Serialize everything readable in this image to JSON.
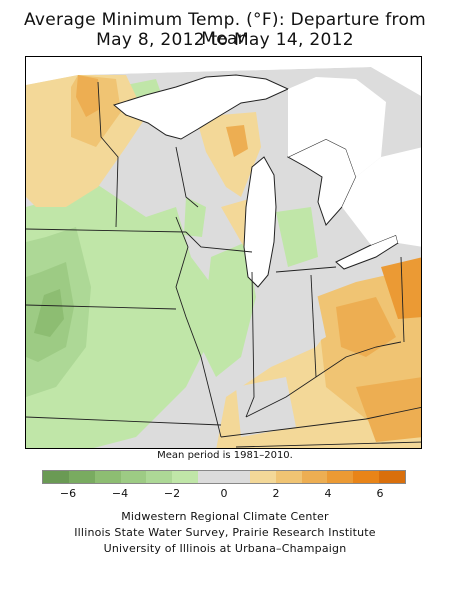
{
  "title_line1": "Average Minimum Temp. (°F): Departure from Mean",
  "title_line2": "May 8, 2012 to May 14, 2012",
  "mean_period_note": "Mean period is 1981–2010.",
  "legend": {
    "ticks": [
      "−6",
      "−4",
      "−2",
      "0",
      "2",
      "4",
      "6"
    ],
    "tick_values": [
      -6,
      -4,
      -2,
      0,
      2,
      4,
      6
    ],
    "range": [
      -7,
      7
    ],
    "bins": [
      {
        "from": -7,
        "to": -6,
        "color": "#6a9a54"
      },
      {
        "from": -6,
        "to": -5,
        "color": "#79ab60"
      },
      {
        "from": -5,
        "to": -4,
        "color": "#8dbd72"
      },
      {
        "from": -4,
        "to": -3,
        "color": "#9dcb84"
      },
      {
        "from": -3,
        "to": -2,
        "color": "#add896"
      },
      {
        "from": -2,
        "to": -1,
        "color": "#c0e6a8"
      },
      {
        "from": -1,
        "to": 1,
        "color": "#dcdcdc"
      },
      {
        "from": 1,
        "to": 2,
        "color": "#f3d898"
      },
      {
        "from": 2,
        "to": 3,
        "color": "#f0c473"
      },
      {
        "from": 3,
        "to": 4,
        "color": "#edae52"
      },
      {
        "from": 4,
        "to": 5,
        "color": "#eb9a34"
      },
      {
        "from": 5,
        "to": 6,
        "color": "#e88418"
      },
      {
        "from": 6,
        "to": 7,
        "color": "#d96f0c"
      }
    ]
  },
  "credits": {
    "line1": "Midwestern Regional Climate Center",
    "line2": "Illinois State Water Survey, Prairie Research Institute",
    "line3": "University of Illinois at Urbana–Champaign"
  },
  "colors": {
    "near_normal": "#dcdcdc",
    "water": "#ffffff",
    "boundary": "#222222"
  }
}
